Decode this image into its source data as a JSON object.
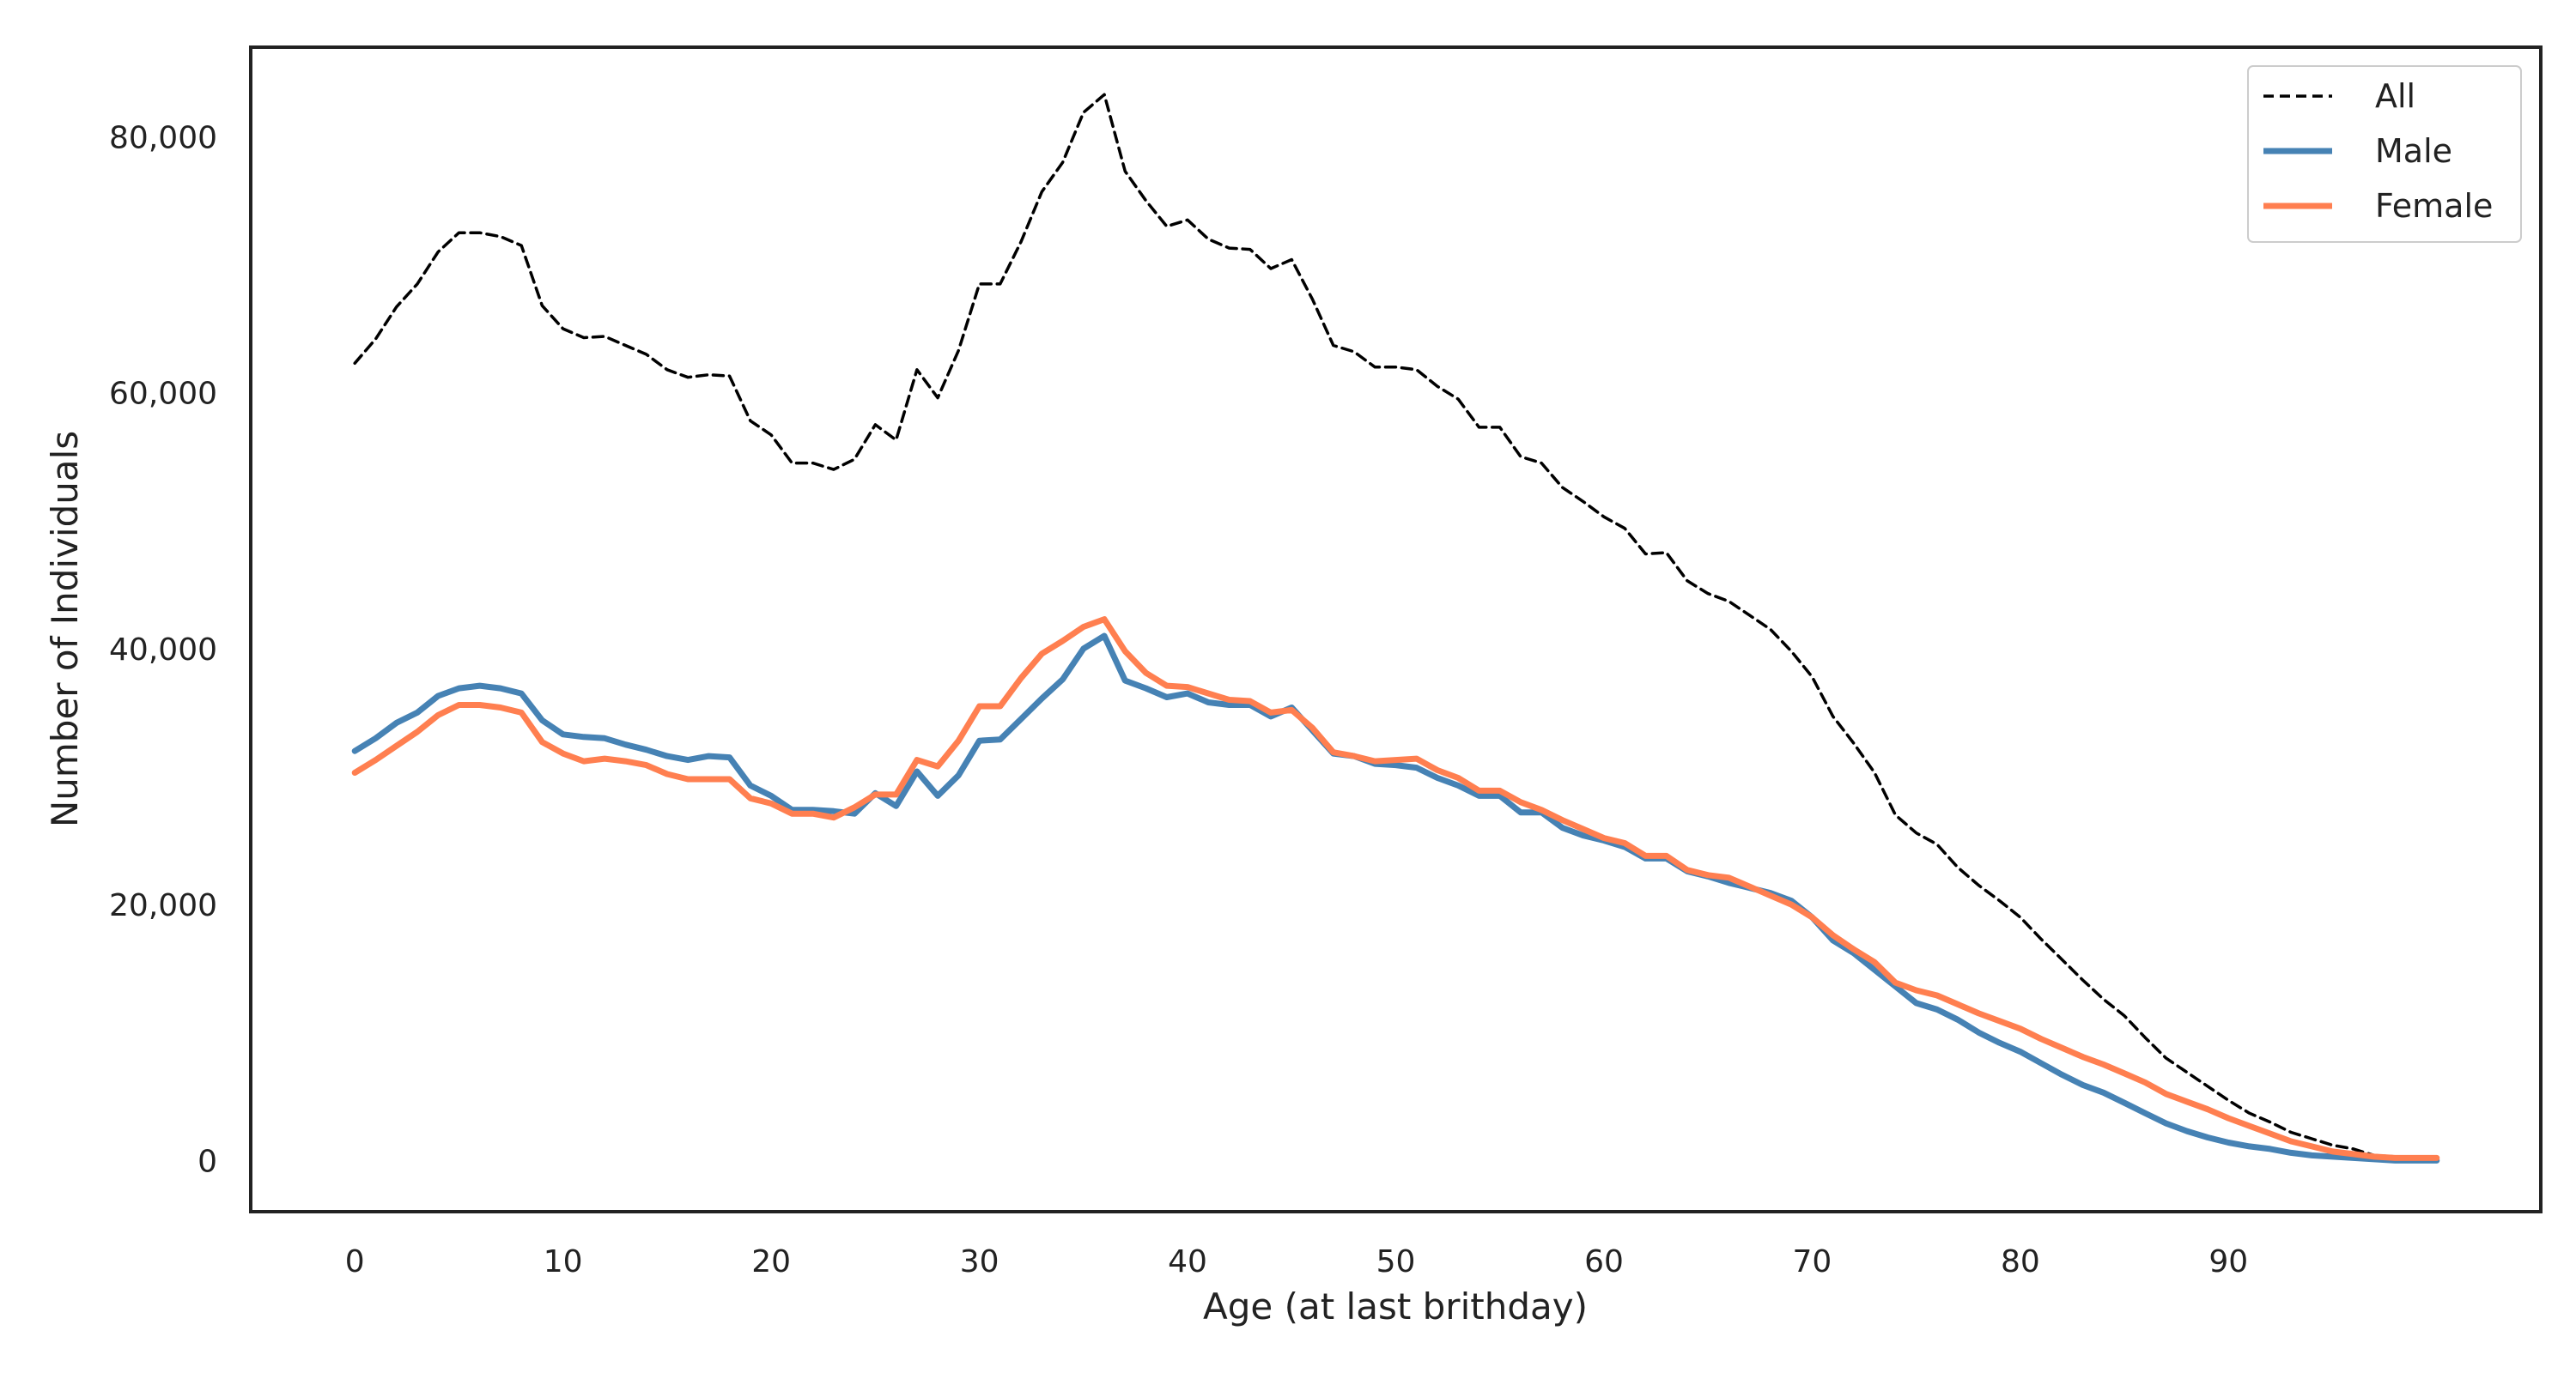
{
  "chart_data": {
    "type": "line",
    "title": "",
    "xlabel": "Age (at last brithday)",
    "ylabel": "Number of Individuals",
    "xlim": [
      -5,
      105
    ],
    "ylim": [
      -4000,
      87000
    ],
    "xticks": [
      0,
      10,
      20,
      30,
      40,
      50,
      60,
      70,
      80,
      90
    ],
    "yticks": [
      0,
      20000,
      40000,
      60000,
      80000
    ],
    "ytick_labels": [
      "0",
      "20,000",
      "40,000",
      "60,000",
      "80,000"
    ],
    "grid": false,
    "legend_position": "top-right",
    "x": [
      0,
      1,
      2,
      3,
      4,
      5,
      6,
      7,
      8,
      9,
      10,
      11,
      12,
      13,
      14,
      15,
      16,
      17,
      18,
      19,
      20,
      21,
      22,
      23,
      24,
      25,
      26,
      27,
      28,
      29,
      30,
      31,
      32,
      33,
      34,
      35,
      36,
      37,
      38,
      39,
      40,
      41,
      42,
      43,
      44,
      45,
      46,
      47,
      48,
      49,
      50,
      51,
      52,
      53,
      54,
      55,
      56,
      57,
      58,
      59,
      60,
      61,
      62,
      63,
      64,
      65,
      66,
      67,
      68,
      69,
      70,
      71,
      72,
      73,
      74,
      75,
      76,
      77,
      78,
      79,
      80,
      81,
      82,
      83,
      84,
      85,
      86,
      87,
      88,
      89,
      90,
      91,
      92,
      93,
      94,
      95,
      96,
      97,
      98,
      99,
      100
    ],
    "series": [
      {
        "name": "All",
        "color": "#000000",
        "style": "dashed",
        "values": [
          62300,
          64200,
          66700,
          68500,
          71000,
          72500,
          72500,
          72200,
          71500,
          66800,
          65000,
          64300,
          64400,
          63700,
          63000,
          61800,
          61200,
          61400,
          61300,
          57800,
          56700,
          54500,
          54500,
          54000,
          54800,
          57500,
          56300,
          61800,
          59600,
          63300,
          68500,
          68500,
          71800,
          75700,
          78000,
          81900,
          83300,
          77300,
          75000,
          73000,
          73500,
          72000,
          71300,
          71200,
          69700,
          70400,
          67300,
          63700,
          63200,
          62000,
          62000,
          61800,
          60500,
          59500,
          57300,
          57300,
          55000,
          54500,
          52600,
          51500,
          50300,
          49400,
          47400,
          47500,
          45300,
          44300,
          43700,
          42600,
          41500,
          39800,
          37800,
          34700,
          32600,
          30300,
          27000,
          25600,
          24700,
          22900,
          21500,
          20300,
          19000,
          17300,
          15700,
          14100,
          12600,
          11300,
          9600,
          8000,
          6900,
          5800,
          4700,
          3700,
          3000,
          2200,
          1700,
          1200,
          900,
          400,
          300,
          200,
          200
        ]
      },
      {
        "name": "Male",
        "color": "#4682b4",
        "style": "solid",
        "values": [
          32000,
          33000,
          34200,
          35000,
          36300,
          36900,
          37100,
          36900,
          36500,
          34400,
          33300,
          33100,
          33000,
          32500,
          32100,
          31600,
          31300,
          31600,
          31500,
          29300,
          28500,
          27400,
          27400,
          27300,
          27100,
          28700,
          27700,
          30400,
          28500,
          30100,
          32800,
          32900,
          34500,
          36100,
          37600,
          40000,
          41000,
          37500,
          36900,
          36200,
          36500,
          35800,
          35600,
          35600,
          34700,
          35400,
          33600,
          31800,
          31600,
          31000,
          30900,
          30700,
          29900,
          29300,
          28500,
          28500,
          27200,
          27200,
          26000,
          25400,
          25000,
          24500,
          23600,
          23600,
          22600,
          22200,
          21700,
          21300,
          20900,
          20300,
          19000,
          17200,
          16200,
          14900,
          13600,
          12300,
          11800,
          11000,
          10000,
          9200,
          8500,
          7600,
          6700,
          5900,
          5300,
          4500,
          3700,
          2900,
          2300,
          1800,
          1400,
          1100,
          900,
          600,
          400,
          300,
          200,
          100,
          0,
          0,
          0
        ]
      },
      {
        "name": "Female",
        "color": "#ff7f50",
        "style": "solid",
        "values": [
          30300,
          31300,
          32400,
          33500,
          34800,
          35600,
          35600,
          35400,
          35000,
          32700,
          31800,
          31200,
          31400,
          31200,
          30900,
          30200,
          29800,
          29800,
          29800,
          28300,
          27900,
          27100,
          27100,
          26800,
          27600,
          28600,
          28600,
          31300,
          30800,
          32800,
          35500,
          35500,
          37700,
          39600,
          40600,
          41700,
          42300,
          39800,
          38100,
          37100,
          37000,
          36500,
          36000,
          35900,
          35000,
          35200,
          33800,
          31900,
          31600,
          31200,
          31300,
          31400,
          30500,
          29900,
          28900,
          28900,
          28000,
          27400,
          26600,
          25900,
          25200,
          24800,
          23800,
          23800,
          22700,
          22300,
          22100,
          21400,
          20700,
          20000,
          19000,
          17600,
          16500,
          15500,
          13900,
          13300,
          12900,
          12200,
          11500,
          10900,
          10300,
          9500,
          8800,
          8100,
          7500,
          6800,
          6100,
          5200,
          4600,
          4000,
          3300,
          2700,
          2100,
          1500,
          1100,
          700,
          500,
          300,
          200,
          200,
          200
        ]
      }
    ]
  }
}
